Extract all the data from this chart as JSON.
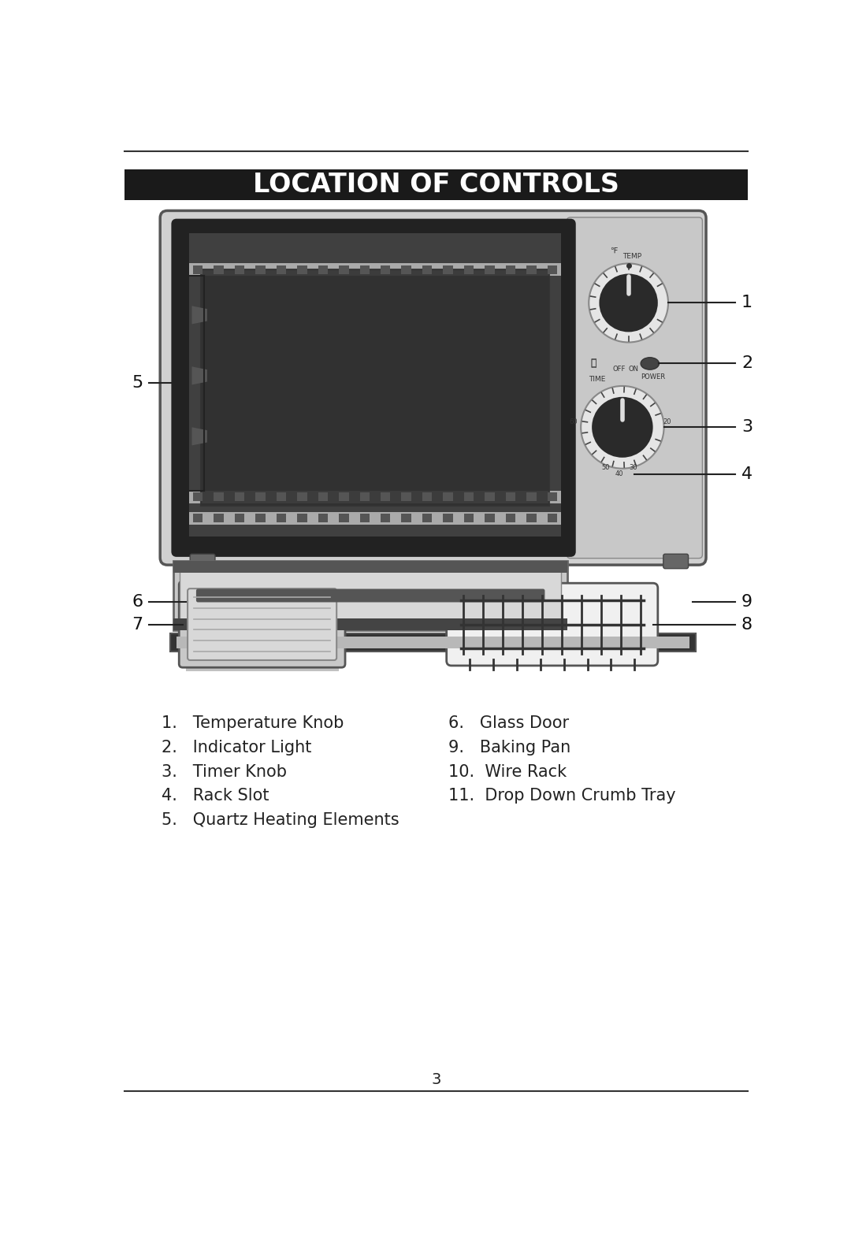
{
  "title": "LOCATION OF CONTROLS",
  "title_bg": "#1a1a1a",
  "title_color": "#ffffff",
  "title_fontsize": 24,
  "bg_color": "#ffffff",
  "page_number": "3",
  "left_labels": [
    "1.   Temperature Knob",
    "2.   Indicator Light",
    "3.   Timer Knob",
    "4.   Rack Slot",
    "5.   Quartz Heating Elements"
  ],
  "right_labels": [
    "6.   Glass Door",
    "9.   Baking Pan",
    "10.  Wire Rack",
    "11.  Drop Down Crumb Tray"
  ],
  "label_fontsize": 15,
  "callout_fontsize": 16,
  "oven_body_color": "#d0d0d0",
  "oven_edge_color": "#555555",
  "oven_interior_color": "#404040",
  "oven_window_bg": "#6a6a6a",
  "ctrl_panel_color": "#c8c8c8",
  "knob_outer_color": "#2a2a2a",
  "knob_ring_color": "#e8e8e8",
  "knob_inner_color": "#3a3a3a",
  "door_color": "#c0c0c0",
  "door_dark_color": "#444444",
  "door_handle_dark": "#333333"
}
